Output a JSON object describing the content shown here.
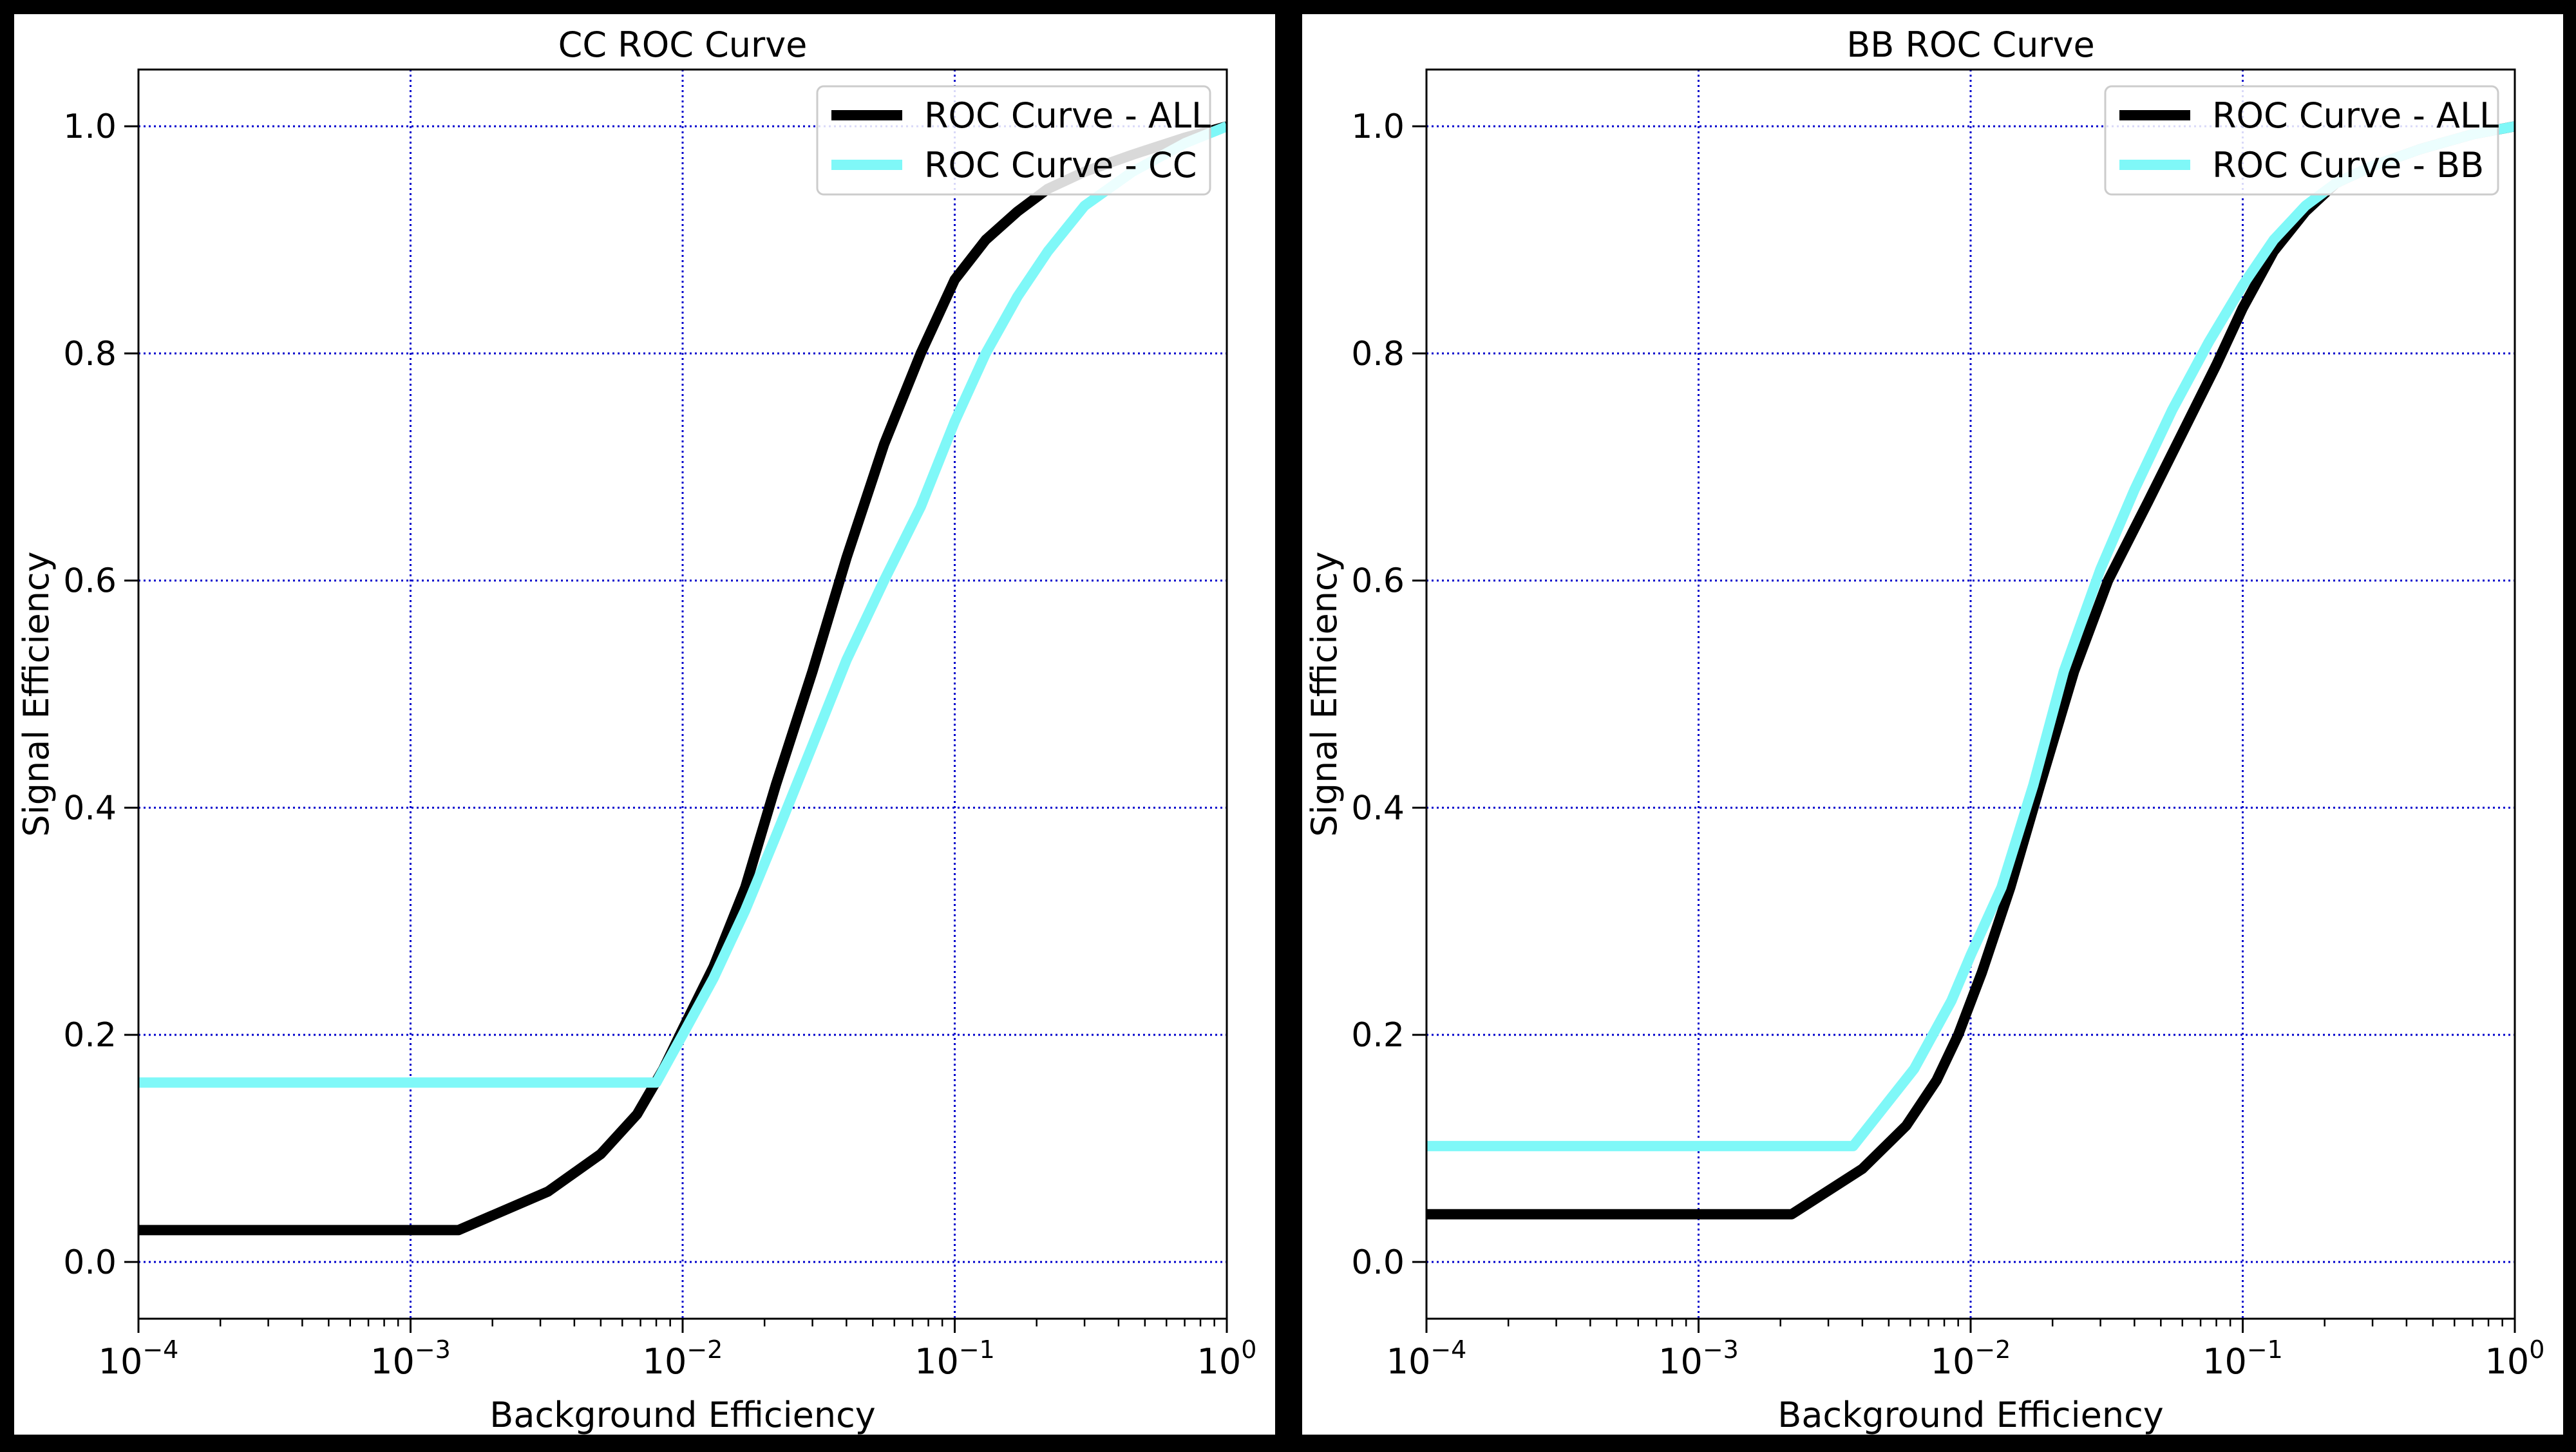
{
  "colors": {
    "background": "#000000",
    "panel": "#ffffff",
    "grid": "#0000cc",
    "series_all": "#000000",
    "series_cc": "#7ff8f8",
    "series_bb": "#7ff8f8"
  },
  "chart_data": [
    {
      "type": "line",
      "title": "CC ROC Curve",
      "xlabel": "Background Efficiency",
      "ylabel": "Signal Efficiency",
      "xscale": "log",
      "xlim": [
        0.0001,
        1
      ],
      "ylim": [
        -0.05,
        1.05
      ],
      "grid": true,
      "legend": "top-right",
      "xticks": [
        {
          "value": 0.0001,
          "base": "10",
          "exp": "−4"
        },
        {
          "value": 0.001,
          "base": "10",
          "exp": "−3"
        },
        {
          "value": 0.01,
          "base": "10",
          "exp": "−2"
        },
        {
          "value": 0.1,
          "base": "10",
          "exp": "−1"
        },
        {
          "value": 1,
          "base": "10",
          "exp": "0"
        }
      ],
      "yticks": [
        {
          "value": 0.0,
          "label": "0.0"
        },
        {
          "value": 0.2,
          "label": "0.2"
        },
        {
          "value": 0.4,
          "label": "0.4"
        },
        {
          "value": 0.6,
          "label": "0.6"
        },
        {
          "value": 0.8,
          "label": "0.8"
        },
        {
          "value": 1.0,
          "label": "1.0"
        }
      ],
      "series": [
        {
          "name": "ROC Curve - ALL",
          "color": "#000000",
          "x": [
            0.0001,
            0.0015,
            0.0032,
            0.005,
            0.0068,
            0.0085,
            0.01,
            0.013,
            0.017,
            0.022,
            0.03,
            0.04,
            0.055,
            0.075,
            0.1,
            0.13,
            0.17,
            0.22,
            0.3,
            0.45,
            0.7,
            1.0
          ],
          "y": [
            0.028,
            0.028,
            0.062,
            0.095,
            0.13,
            0.17,
            0.205,
            0.26,
            0.33,
            0.42,
            0.52,
            0.62,
            0.72,
            0.8,
            0.865,
            0.9,
            0.925,
            0.945,
            0.96,
            0.975,
            0.99,
            1.0
          ]
        },
        {
          "name": "ROC Curve - CC",
          "color": "#7ff8f8",
          "x": [
            0.0001,
            0.008,
            0.01,
            0.013,
            0.017,
            0.022,
            0.03,
            0.04,
            0.055,
            0.075,
            0.1,
            0.13,
            0.17,
            0.22,
            0.3,
            0.45,
            0.7,
            1.0
          ],
          "y": [
            0.158,
            0.158,
            0.2,
            0.25,
            0.31,
            0.375,
            0.455,
            0.53,
            0.6,
            0.665,
            0.74,
            0.8,
            0.85,
            0.89,
            0.93,
            0.96,
            0.985,
            1.0
          ]
        }
      ]
    },
    {
      "type": "line",
      "title": "BB ROC Curve",
      "xlabel": "Background Efficiency",
      "ylabel": "Signal Efficiency",
      "xscale": "log",
      "xlim": [
        0.0001,
        1
      ],
      "ylim": [
        -0.05,
        1.05
      ],
      "grid": true,
      "legend": "top-right",
      "xticks": [
        {
          "value": 0.0001,
          "base": "10",
          "exp": "−4"
        },
        {
          "value": 0.001,
          "base": "10",
          "exp": "−3"
        },
        {
          "value": 0.01,
          "base": "10",
          "exp": "−2"
        },
        {
          "value": 0.1,
          "base": "10",
          "exp": "−1"
        },
        {
          "value": 1,
          "base": "10",
          "exp": "0"
        }
      ],
      "yticks": [
        {
          "value": 0.0,
          "label": "0.0"
        },
        {
          "value": 0.2,
          "label": "0.2"
        },
        {
          "value": 0.4,
          "label": "0.4"
        },
        {
          "value": 0.6,
          "label": "0.6"
        },
        {
          "value": 0.8,
          "label": "0.8"
        },
        {
          "value": 1.0,
          "label": "1.0"
        }
      ],
      "series": [
        {
          "name": "ROC Curve - ALL",
          "color": "#000000",
          "x": [
            0.0001,
            0.0022,
            0.004,
            0.0058,
            0.0075,
            0.009,
            0.011,
            0.014,
            0.018,
            0.024,
            0.032,
            0.045,
            0.06,
            0.08,
            0.1,
            0.13,
            0.17,
            0.22,
            0.3,
            0.45,
            0.7,
            1.0
          ],
          "y": [
            0.042,
            0.042,
            0.082,
            0.12,
            0.16,
            0.2,
            0.255,
            0.33,
            0.42,
            0.52,
            0.6,
            0.67,
            0.73,
            0.79,
            0.84,
            0.89,
            0.925,
            0.95,
            0.965,
            0.98,
            0.993,
            1.0
          ]
        },
        {
          "name": "ROC Curve - BB",
          "color": "#7ff8f8",
          "x": [
            0.0001,
            0.0037,
            0.0062,
            0.0085,
            0.01,
            0.013,
            0.017,
            0.022,
            0.03,
            0.04,
            0.055,
            0.075,
            0.1,
            0.13,
            0.17,
            0.22,
            0.3,
            0.45,
            0.7,
            1.0
          ],
          "y": [
            0.102,
            0.102,
            0.17,
            0.23,
            0.27,
            0.33,
            0.42,
            0.52,
            0.61,
            0.68,
            0.75,
            0.81,
            0.86,
            0.9,
            0.93,
            0.95,
            0.965,
            0.98,
            0.993,
            1.0
          ]
        }
      ]
    }
  ]
}
